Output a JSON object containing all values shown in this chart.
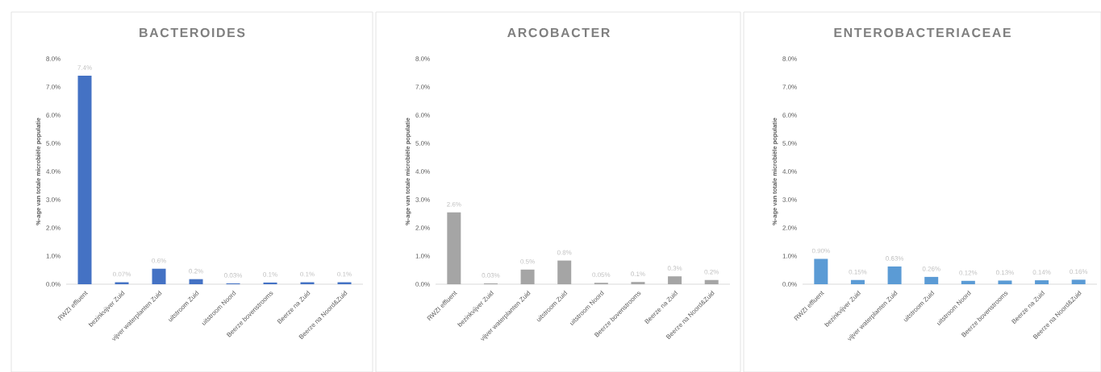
{
  "chart_data": [
    {
      "type": "bar",
      "title": "BACTEROIDES",
      "ylabel": "%-age van totale microbiële populatie",
      "categories": [
        "RWZI effluent",
        "bezinkvijver Zuid",
        "vijver waterplanten Zuid",
        "uitstroom Zuid",
        "uitstroom Noord",
        "Beerze bovenstrooms",
        "Beerze na Zuid",
        "Beerze na Noord&Zuid"
      ],
      "values": [
        7.4,
        0.07,
        0.55,
        0.18,
        0.03,
        0.06,
        0.07,
        0.07
      ],
      "value_labels": [
        "7.4%",
        "0.07%",
        "0.6%",
        "0.2%",
        "0.03%",
        "0.1%",
        "0.1%",
        "0.1%"
      ],
      "color": "#4472c4",
      "ylim": [
        0,
        8
      ],
      "yticks": [
        {
          "value": 0,
          "label": "0.0%"
        },
        {
          "value": 1,
          "label": "1.0%"
        },
        {
          "value": 2,
          "label": "2.0%"
        },
        {
          "value": 3,
          "label": "3.0%"
        },
        {
          "value": 4,
          "label": "4.0%"
        },
        {
          "value": 5,
          "label": "5.0%"
        },
        {
          "value": 6,
          "label": "6.0%"
        },
        {
          "value": 7,
          "label": "7.0%"
        },
        {
          "value": 8,
          "label": "8.0%"
        }
      ]
    },
    {
      "type": "bar",
      "title": "ARCOBACTER",
      "ylabel": "%-age van totale microbiële populatie",
      "categories": [
        "RWZI effluent",
        "bezinkvijver Zuid",
        "vijver waterplanten Zuid",
        "uitstroom Zuid",
        "uitstroom Noord",
        "Beerze bovenstrooms",
        "Beerze na Zuid",
        "Beerze na Noord&Zuid"
      ],
      "values": [
        2.55,
        0.03,
        0.52,
        0.84,
        0.05,
        0.08,
        0.28,
        0.15
      ],
      "value_labels": [
        "2.6%",
        "0.03%",
        "0.5%",
        "0.8%",
        "0.05%",
        "0.1%",
        "0.3%",
        "0.2%"
      ],
      "color": "#a5a5a5",
      "ylim": [
        0,
        8
      ],
      "yticks": [
        {
          "value": 0,
          "label": "0.0%"
        },
        {
          "value": 1,
          "label": "1.0%"
        },
        {
          "value": 2,
          "label": "2.0%"
        },
        {
          "value": 3,
          "label": "3.0%"
        },
        {
          "value": 4,
          "label": "4.0%"
        },
        {
          "value": 5,
          "label": "5.0%"
        },
        {
          "value": 6,
          "label": "6.0%"
        },
        {
          "value": 7,
          "label": "7.0%"
        },
        {
          "value": 8,
          "label": "8.0%"
        }
      ]
    },
    {
      "type": "bar",
      "title": "ENTEROBACTERIACEAE",
      "ylabel": "%-age van totale microbiële populatie",
      "categories": [
        "RWZI effluent",
        "bezinkvijver Zuid",
        "vijver waterplanten Zuid",
        "uitstroom Zuid",
        "uitstroom Noord",
        "Beerze bovenstrooms",
        "Beerze na Zuid",
        "Beerze na Noord&Zuid"
      ],
      "values": [
        0.9,
        0.15,
        0.63,
        0.26,
        0.12,
        0.13,
        0.14,
        0.16
      ],
      "value_labels": [
        "0.90%",
        "0.15%",
        "0.63%",
        "0.26%",
        "0.12%",
        "0.13%",
        "0.14%",
        "0.16%"
      ],
      "color": "#5b9bd5",
      "ylim": [
        0,
        8
      ],
      "yticks": [
        {
          "value": 0,
          "label": "0.0%"
        },
        {
          "value": 1,
          "label": "1.0%"
        },
        {
          "value": 2,
          "label": "2.0%"
        },
        {
          "value": 3,
          "label": "3.0%"
        },
        {
          "value": 4,
          "label": "4.0%"
        },
        {
          "value": 5,
          "label": "5.0%"
        },
        {
          "value": 6,
          "label": "6.0%"
        },
        {
          "value": 7,
          "label": "7.0%"
        },
        {
          "value": 8,
          "label": "8.0%"
        }
      ]
    }
  ]
}
